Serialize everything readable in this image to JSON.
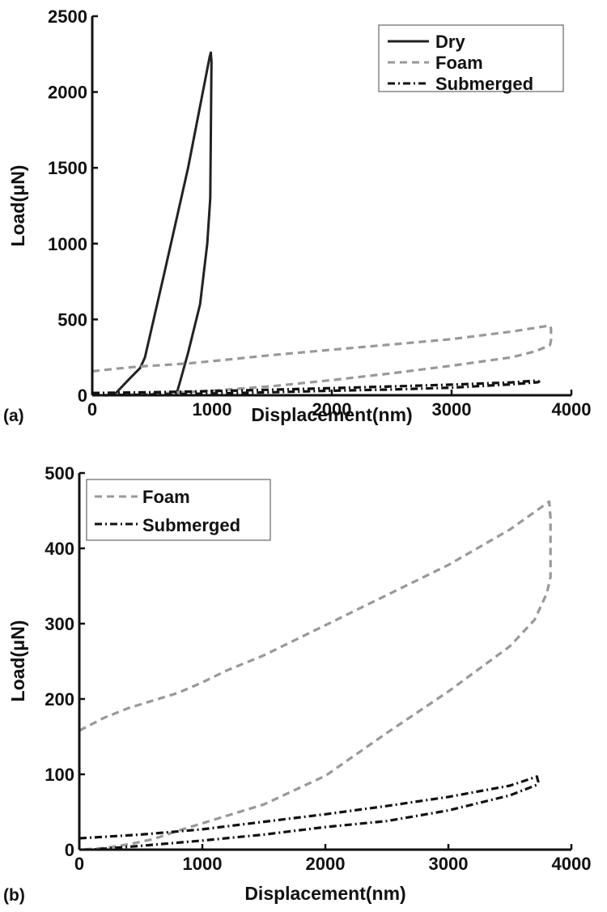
{
  "chart_data": [
    {
      "panel": "(a)",
      "type": "line",
      "title": "",
      "xlabel": "Displacement(nm)",
      "ylabel": "Load(μN)",
      "xlim": [
        0,
        4000
      ],
      "ylim": [
        0,
        2500
      ],
      "xticks": [
        0,
        1000,
        2000,
        3000,
        4000
      ],
      "yticks": [
        0,
        500,
        1000,
        1500,
        2000,
        2500
      ],
      "grid": false,
      "legend_position": "upper right",
      "series": [
        {
          "name": "Dry",
          "style": "solid",
          "color": "#222222",
          "x": [
            180,
            300,
            400,
            440,
            600,
            800,
            980,
            990,
            995,
            985,
            960,
            900,
            800,
            730,
            700
          ],
          "y": [
            0,
            100,
            180,
            250,
            800,
            1500,
            2230,
            2260,
            2200,
            1300,
            1000,
            600,
            280,
            80,
            0
          ]
        },
        {
          "name": "Foam",
          "style": "dashed",
          "color": "#999999",
          "x": [
            0,
            200,
            400,
            600,
            800,
            1000,
            1500,
            2000,
            2500,
            3000,
            3500,
            3820,
            3830,
            3830,
            3820,
            3700,
            3500,
            3000,
            2500,
            2000,
            1500,
            1000,
            500,
            100
          ],
          "y": [
            158,
            175,
            190,
            200,
            210,
            225,
            265,
            300,
            335,
            370,
            420,
            460,
            440,
            360,
            330,
            290,
            250,
            195,
            145,
            100,
            60,
            30,
            10,
            0
          ]
        },
        {
          "name": "Submerged",
          "style": "dashdot",
          "color": "#111111",
          "x": [
            0,
            500,
            1000,
            1500,
            2000,
            2500,
            3000,
            3500,
            3720,
            3730,
            3720,
            3500,
            3000,
            2500,
            2000,
            1500,
            1000,
            500,
            100
          ],
          "y": [
            15,
            20,
            27,
            37,
            47,
            58,
            70,
            85,
            97,
            90,
            86,
            72,
            50,
            38,
            30,
            20,
            12,
            5,
            0
          ]
        }
      ]
    },
    {
      "panel": "(b)",
      "type": "line",
      "title": "",
      "xlabel": "Displacement(nm)",
      "ylabel": "Load(μN)",
      "xlim": [
        0,
        4000
      ],
      "ylim": [
        0,
        500
      ],
      "xticks": [
        0,
        1000,
        2000,
        3000,
        4000
      ],
      "yticks": [
        0,
        100,
        200,
        300,
        400,
        500
      ],
      "grid": false,
      "legend_position": "upper left",
      "series": [
        {
          "name": "Foam",
          "style": "dashed",
          "color": "#999999",
          "x": [
            0,
            200,
            400,
            600,
            800,
            1000,
            1200,
            1500,
            2000,
            2500,
            3000,
            3500,
            3820,
            3830,
            3830,
            3800,
            3700,
            3500,
            3000,
            2500,
            2000,
            1500,
            1200,
            1000,
            800,
            600,
            400,
            200,
            0
          ],
          "y": [
            158,
            175,
            188,
            198,
            208,
            222,
            238,
            258,
            298,
            338,
            378,
            425,
            462,
            440,
            362,
            340,
            305,
            270,
            210,
            155,
            98,
            60,
            45,
            35,
            25,
            14,
            7,
            2,
            0
          ],
          "note": "loop: loading top, unloading lower"
        },
        {
          "name": "Submerged",
          "style": "dashdot",
          "color": "#111111",
          "x": [
            0,
            500,
            1000,
            1500,
            2000,
            2500,
            3000,
            3500,
            3720,
            3730,
            3720,
            3500,
            3000,
            2500,
            2000,
            1500,
            1000,
            500,
            100
          ],
          "y": [
            15,
            20,
            27,
            37,
            47,
            58,
            70,
            85,
            97,
            90,
            86,
            72,
            52,
            38,
            30,
            20,
            12,
            5,
            0
          ]
        }
      ]
    }
  ],
  "panels": {
    "a": {
      "label": "(a)",
      "xlabel": "Displacement(nm)",
      "ylabel": "Load(μN)",
      "xtick_labels": [
        "0",
        "1000",
        "2000",
        "3000",
        "4000"
      ],
      "ytick_labels": [
        "0",
        "500",
        "1000",
        "1500",
        "2000",
        "2500"
      ],
      "legend": [
        "Dry",
        "Foam",
        "Submerged"
      ]
    },
    "b": {
      "label": "(b)",
      "xlabel": "Displacement(nm)",
      "ylabel": "Load(μN)",
      "xtick_labels": [
        "0",
        "1000",
        "2000",
        "3000",
        "4000"
      ],
      "ytick_labels": [
        "0",
        "100",
        "200",
        "300",
        "400",
        "500"
      ],
      "legend": [
        "Foam",
        "Submerged"
      ]
    }
  }
}
